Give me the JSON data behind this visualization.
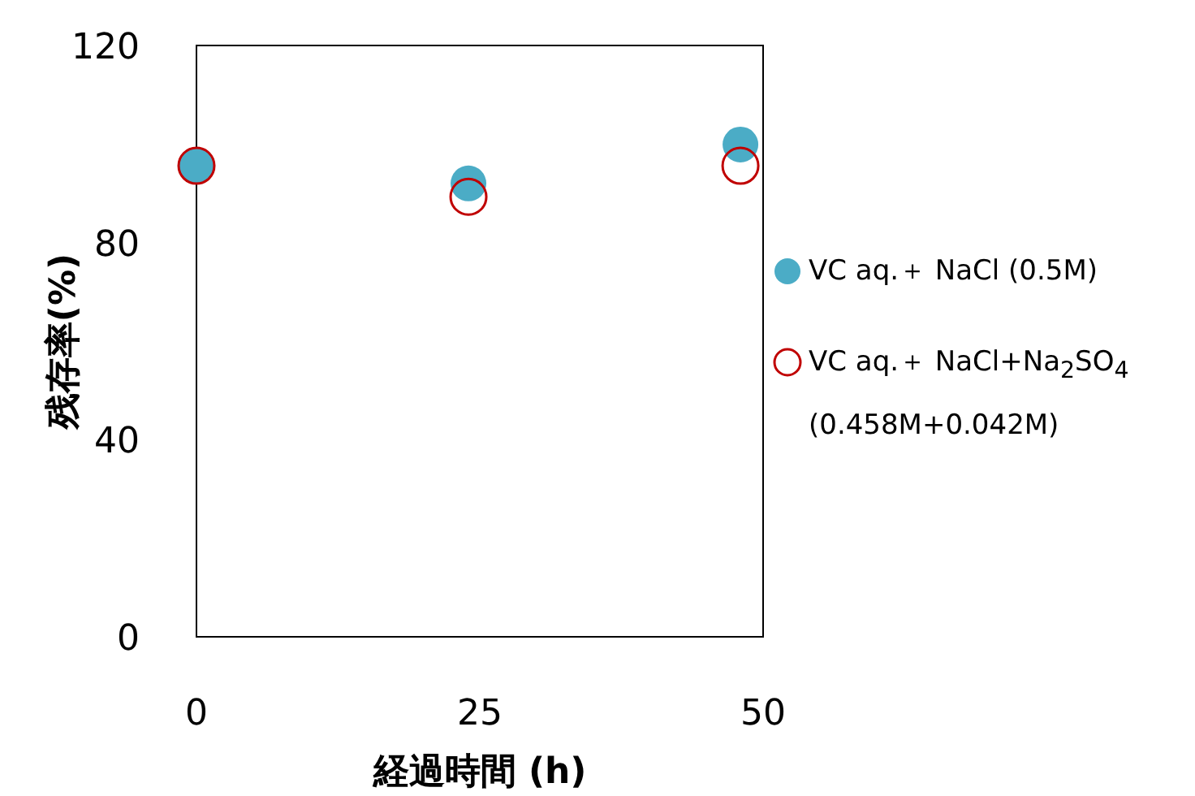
{
  "chart_data": {
    "type": "scatter",
    "xlabel": "経過時間 (h)",
    "ylabel": "残存率(%)",
    "x": [
      0,
      24,
      48
    ],
    "series": [
      {
        "name": "VC aq.＋ NaCl (0.5M)",
        "color": "#4bacc6",
        "values": [
          95.6,
          92,
          99.9
        ]
      },
      {
        "name": "VC aq.＋ NaCl+Na$_{2}$SO$_{4}$ (0.458M+0.042M)",
        "color": "#c00000",
        "values": [
          95.6,
          89.3,
          95.6
        ]
      }
    ],
    "xlim": [
      0,
      50
    ],
    "xticks": [
      0,
      25,
      50
    ],
    "ylim": [
      0,
      120
    ],
    "yticks": [
      0,
      40,
      80,
      120
    ],
    "marker": "circle",
    "legend": "right",
    "grid": false
  }
}
